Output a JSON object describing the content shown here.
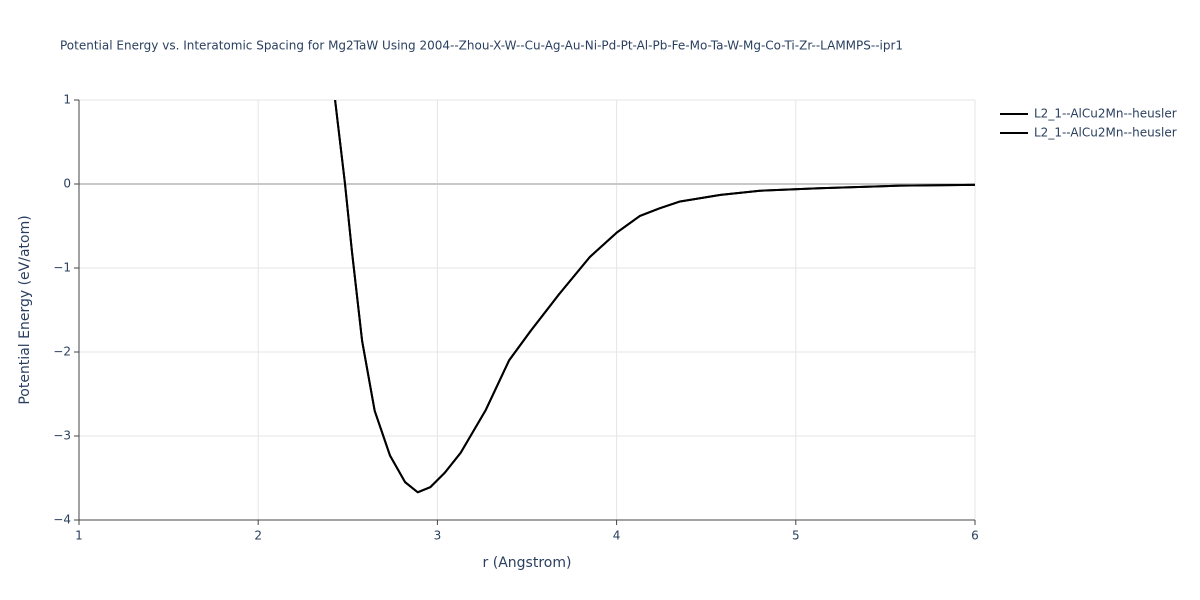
{
  "chart_data": {
    "type": "line",
    "title": "Potential Energy vs. Interatomic Spacing for Mg2TaW Using 2004--Zhou-X-W--Cu-Ag-Au-Ni-Pd-Pt-Al-Pb-Fe-Mo-Ta-W-Mg-Co-Ti-Zr--LAMMPS--ipr1",
    "x_label": "r (Angstrom)",
    "y_label": "Potential Energy (eV/atom)",
    "x": [
      2.429,
      2.484,
      2.523,
      2.58,
      2.65,
      2.735,
      2.82,
      2.89,
      2.96,
      3.04,
      3.13,
      3.27,
      3.4,
      3.52,
      3.68,
      3.85,
      4.0,
      4.13,
      4.24,
      4.35,
      4.58,
      4.8,
      5.13,
      5.58,
      6.0
    ],
    "series": [
      {
        "name": "L2_1--AlCu2Mn--heusler",
        "color": "#000000",
        "values": [
          1,
          0.01,
          -0.8,
          -1.87,
          -2.7,
          -3.23,
          -3.55,
          -3.67,
          -3.61,
          -3.44,
          -3.2,
          -2.69,
          -2.1,
          -1.75,
          -1.31,
          -0.87,
          -0.58,
          -0.38,
          -0.29,
          -0.21,
          -0.13,
          -0.08,
          -0.05,
          -0.02,
          -0.01
        ]
      },
      {
        "name": "L2_1--AlCu2Mn--heusler",
        "color": "#000000",
        "values": [
          1,
          0.01,
          -0.8,
          -1.87,
          -2.7,
          -3.23,
          -3.55,
          -3.67,
          -3.61,
          -3.44,
          -3.2,
          -2.69,
          -2.1,
          -1.75,
          -1.31,
          -0.87,
          -0.58,
          -0.38,
          -0.29,
          -0.21,
          -0.13,
          -0.08,
          -0.05,
          -0.02,
          -0.01
        ]
      }
    ],
    "xlim": [
      1,
      6
    ],
    "xticks": [
      1,
      2,
      3,
      4,
      5,
      6
    ],
    "ylim": [
      -4,
      1
    ],
    "yticks": [
      {
        "value": -4,
        "label": "−4"
      },
      {
        "value": -3,
        "label": "−3"
      },
      {
        "value": -2,
        "label": "−2"
      },
      {
        "value": -1,
        "label": "−1"
      },
      0,
      1
    ],
    "grid": true
  }
}
